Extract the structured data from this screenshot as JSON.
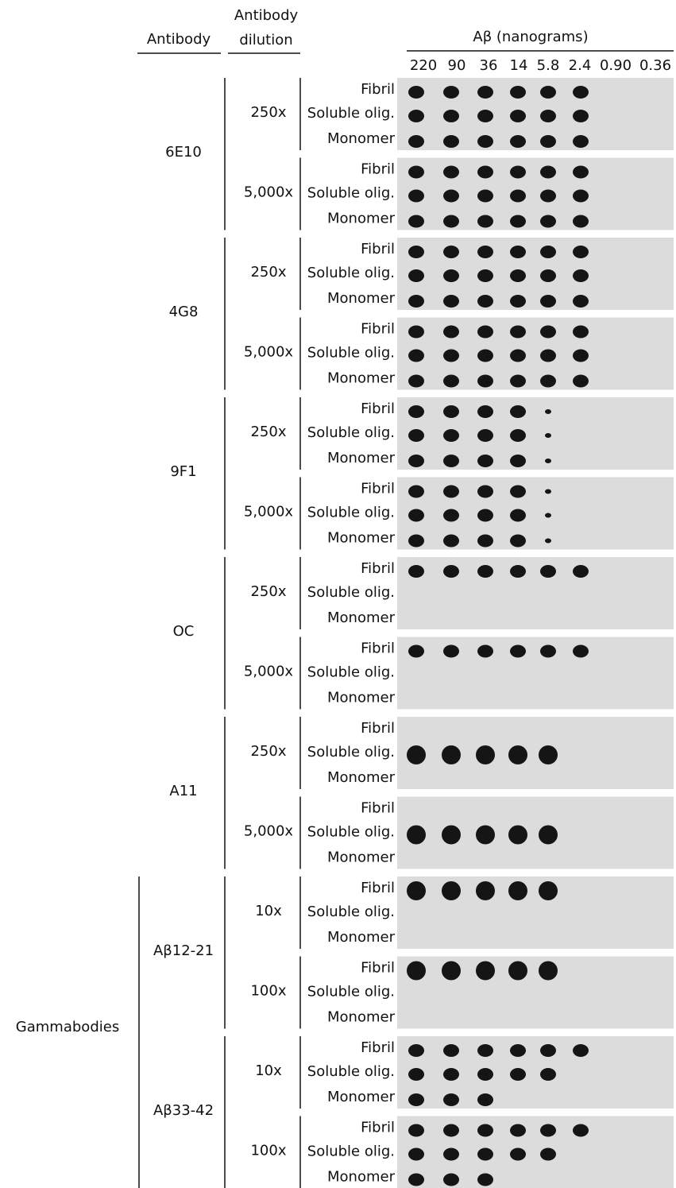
{
  "header": {
    "antibody": "Antibody",
    "dilution": [
      "Antibody",
      "dilution"
    ],
    "abeta": "Aβ (nanograms)",
    "amounts": [
      "220",
      "90",
      "36",
      "14",
      "5.8",
      "2.4",
      "0.90",
      "0.36"
    ]
  },
  "group_label": "Gammabodies",
  "antibodies": [
    {
      "name": "6E10",
      "dilutions": [
        {
          "label": "250x",
          "rows": [
            "Fibril",
            "Soluble olig.",
            "Monomer"
          ]
        },
        {
          "label": "5,000x",
          "rows": [
            "Fibril",
            "Soluble olig.",
            "Monomer"
          ]
        }
      ]
    },
    {
      "name": "4G8",
      "dilutions": [
        {
          "label": "250x",
          "rows": [
            "Fibril",
            "Soluble olig.",
            "Monomer"
          ]
        },
        {
          "label": "5,000x",
          "rows": [
            "Fibril",
            "Soluble olig.",
            "Monomer"
          ]
        }
      ]
    },
    {
      "name": "9F1",
      "dilutions": [
        {
          "label": "250x",
          "rows": [
            "Fibril",
            "Soluble olig.",
            "Monomer"
          ]
        },
        {
          "label": "5,000x",
          "rows": [
            "Fibril",
            "Soluble olig.",
            "Monomer"
          ]
        }
      ]
    },
    {
      "name": "OC",
      "dilutions": [
        {
          "label": "250x",
          "rows": [
            "Fibril",
            "Soluble olig.",
            "Monomer"
          ]
        },
        {
          "label": "5,000x",
          "rows": [
            "Fibril",
            "Soluble olig.",
            "Monomer"
          ]
        }
      ]
    },
    {
      "name": "A11",
      "dilutions": [
        {
          "label": "250x",
          "rows": [
            "Fibril",
            "Soluble olig.",
            "Monomer"
          ]
        },
        {
          "label": "5,000x",
          "rows": [
            "Fibril",
            "Soluble olig.",
            "Monomer"
          ]
        }
      ]
    },
    {
      "name": "Aβ12-21",
      "dilutions": [
        {
          "label": "10x",
          "rows": [
            "Fibril",
            "Soluble olig.",
            "Monomer"
          ]
        },
        {
          "label": "100x",
          "rows": [
            "Fibril",
            "Soluble olig.",
            "Monomer"
          ]
        }
      ]
    },
    {
      "name": "Aβ33-42",
      "dilutions": [
        {
          "label": "10x",
          "rows": [
            "Fibril",
            "Soluble olig.",
            "Monomer"
          ]
        },
        {
          "label": "100x",
          "rows": [
            "Fibril",
            "Soluble olig.",
            "Monomer"
          ]
        }
      ]
    }
  ]
}
